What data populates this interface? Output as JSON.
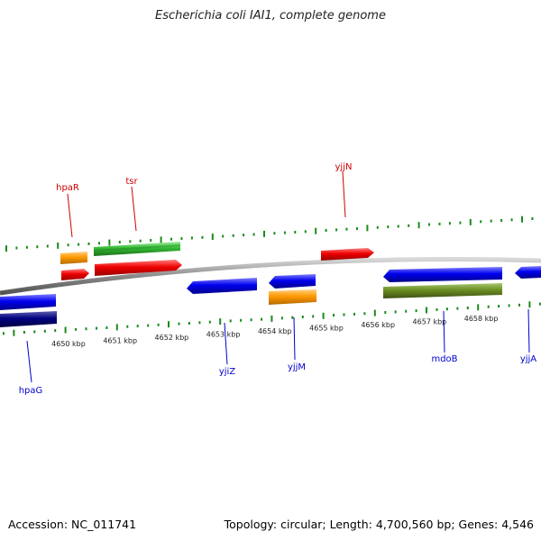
{
  "title": "Escherichia coli IAI1, complete genome",
  "footer": {
    "accession": "Accession: NC_011741",
    "summary": "Topology: circular; Length: 4,700,560 bp; Genes: 4,546"
  },
  "colors": {
    "backbone": "#8a8a8a",
    "ticks": "#1a8a1a",
    "label_top": "#cc0000",
    "label_bottom": "#0000cc",
    "red": "#ee0000",
    "orange": "#ff9900",
    "green": "#33bb33",
    "blue": "#0000ee",
    "navy": "#000080",
    "olive": "#6b8e23"
  },
  "ticks": {
    "labels": [
      "4650 kbp",
      "4651 kbp",
      "4652 kbp",
      "4653 kbp",
      "4654 kbp",
      "4655 kbp",
      "4656 kbp",
      "4657 kbp",
      "4658 kbp"
    ]
  },
  "genes_top": [
    {
      "label": "hpaR"
    },
    {
      "label": "tsr"
    },
    {
      "label": "yjjN"
    }
  ],
  "genes_bottom": [
    {
      "label": "hpaG"
    },
    {
      "label": "yjiZ"
    },
    {
      "label": "yjjM"
    },
    {
      "label": "mdoB"
    },
    {
      "label": "yjjA"
    }
  ]
}
